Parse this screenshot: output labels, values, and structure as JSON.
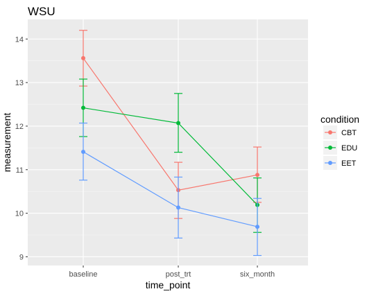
{
  "chart_data": {
    "type": "line",
    "title": "WSU",
    "xlabel": "time_point",
    "ylabel": "measurement",
    "categories": [
      "baseline",
      "post_trt",
      "six_month"
    ],
    "ylim": [
      8.8,
      14.45
    ],
    "yticks": [
      9,
      10,
      11,
      12,
      13,
      14
    ],
    "grid": true,
    "error_bars": true,
    "legend": {
      "title": "condition",
      "placement": "right"
    },
    "series": [
      {
        "name": "CBT",
        "color": "#F8766D",
        "values": [
          13.56,
          10.53,
          10.88
        ],
        "lower": [
          12.92,
          9.88,
          10.25
        ],
        "upper": [
          14.2,
          11.17,
          11.52
        ]
      },
      {
        "name": "EDU",
        "color": "#00BA38",
        "values": [
          12.42,
          12.07,
          10.19
        ],
        "lower": [
          11.76,
          11.4,
          9.56
        ],
        "upper": [
          13.08,
          12.75,
          10.81
        ]
      },
      {
        "name": "EET",
        "color": "#619CFF",
        "values": [
          11.41,
          10.13,
          9.69
        ],
        "lower": [
          10.76,
          9.43,
          9.03
        ],
        "upper": [
          12.07,
          10.83,
          10.34
        ]
      }
    ]
  }
}
